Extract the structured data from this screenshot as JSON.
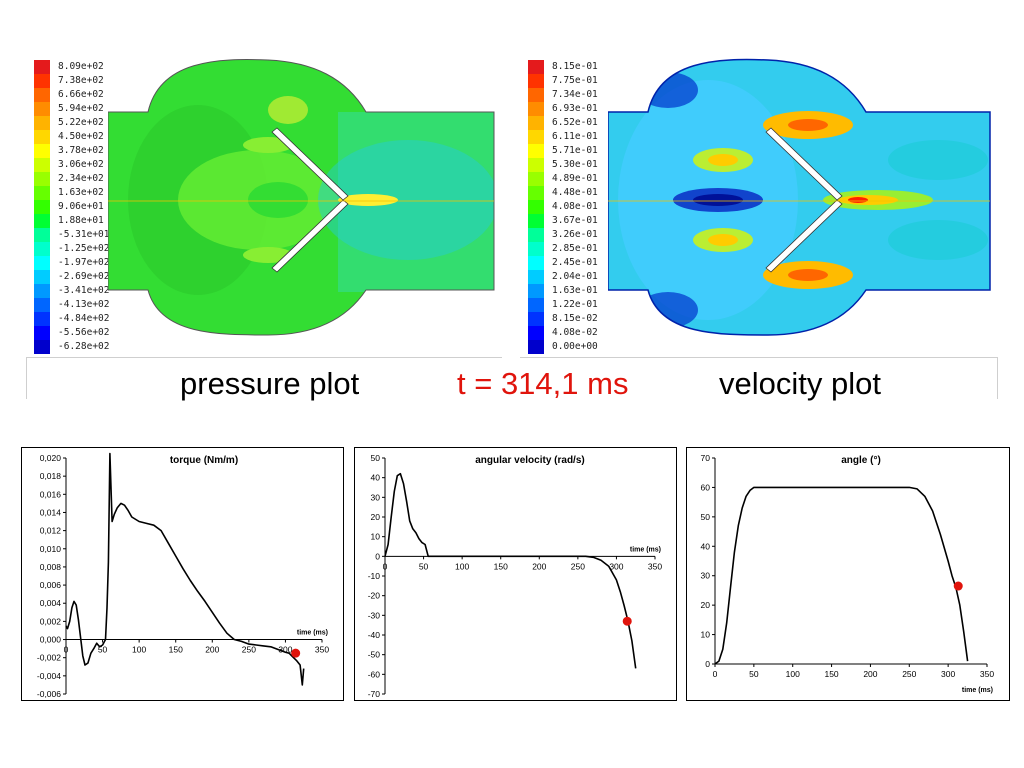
{
  "captions": {
    "pressure": "pressure plot",
    "time": "t = 314,1 ms",
    "velocity": "velocity plot",
    "time_color": "#e0140c"
  },
  "pressure_legend": {
    "labels": [
      "8.09e+02",
      "7.38e+02",
      "6.66e+02",
      "5.94e+02",
      "5.22e+02",
      "4.50e+02",
      "3.78e+02",
      "3.06e+02",
      "2.34e+02",
      "1.63e+02",
      "9.06e+01",
      "1.88e+01",
      "-5.31e+01",
      "-1.25e+02",
      "-1.97e+02",
      "-2.69e+02",
      "-3.41e+02",
      "-4.13e+02",
      "-4.84e+02",
      "-5.56e+02",
      "-6.28e+02"
    ]
  },
  "velocity_legend": {
    "labels": [
      "8.15e-01",
      "7.75e-01",
      "7.34e-01",
      "6.93e-01",
      "6.52e-01",
      "6.11e-01",
      "5.71e-01",
      "5.30e-01",
      "4.89e-01",
      "4.48e-01",
      "4.08e-01",
      "3.67e-01",
      "3.26e-01",
      "2.85e-01",
      "2.45e-01",
      "2.04e-01",
      "1.63e-01",
      "1.22e-01",
      "8.15e-02",
      "4.08e-02",
      "0.00e+00"
    ]
  },
  "colormap": [
    "#e41a1c",
    "#ff3300",
    "#ff6600",
    "#ff8c00",
    "#ffb300",
    "#ffd700",
    "#ffff00",
    "#ccff00",
    "#99ff00",
    "#66ff00",
    "#33ff00",
    "#00ff33",
    "#00ff99",
    "#00ffcc",
    "#00ffff",
    "#00ccff",
    "#0099ff",
    "#0066ff",
    "#0033ff",
    "#0000ff",
    "#0000cc"
  ],
  "chart_data": [
    {
      "type": "line",
      "title": "torque (Nm/m)",
      "xlabel": "time (ms)",
      "ylabel": "",
      "xlim": [
        0,
        350
      ],
      "ylim": [
        -0.006,
        0.02
      ],
      "xticks": [
        "0",
        "50",
        "100",
        "150",
        "200",
        "250",
        "300",
        "350"
      ],
      "yticks": [
        "-0,006",
        "-0,004",
        "-0,002",
        "0,000",
        "0,002",
        "0,004",
        "0,006",
        "0,008",
        "0,010",
        "0,012",
        "0,014",
        "0,016",
        "0,018",
        "0,020"
      ],
      "series": [
        {
          "x": [
            0,
            2,
            5,
            8,
            11,
            14,
            17,
            20,
            23,
            26,
            30,
            34,
            38,
            42,
            46,
            50,
            54,
            56,
            58,
            60,
            63,
            66,
            70,
            75,
            80,
            85,
            90,
            100,
            110,
            120,
            130,
            140,
            150,
            160,
            170,
            180,
            190,
            200,
            210,
            220,
            230,
            240,
            250,
            260,
            270,
            280,
            290,
            300,
            305,
            310,
            315,
            320,
            323,
            325
          ],
          "y": [
            0.0015,
            0.0012,
            0.002,
            0.0035,
            0.0042,
            0.0038,
            0.0022,
            0.0002,
            -0.0018,
            -0.0028,
            -0.0026,
            -0.0015,
            -0.001,
            -0.0004,
            -0.0008,
            -0.0006,
            0.0,
            0.0035,
            0.0085,
            0.0205,
            0.013,
            0.0138,
            0.0145,
            0.015,
            0.0148,
            0.0142,
            0.0135,
            0.013,
            0.0128,
            0.0126,
            0.012,
            0.0106,
            0.0092,
            0.0078,
            0.0065,
            0.0053,
            0.0042,
            0.003,
            0.0018,
            0.0007,
            0.0,
            -0.0002,
            -0.0005,
            -0.0006,
            -0.0007,
            -0.0008,
            -0.0011,
            -0.0014,
            -0.0015,
            -0.0019,
            -0.0023,
            -0.0028,
            -0.005,
            -0.0032
          ]
        }
      ],
      "marker": {
        "x": 314,
        "y": -0.0015,
        "color": "#e0140c"
      },
      "legend": "none",
      "grid": false
    },
    {
      "type": "line",
      "title": "angular velocity (rad/s)",
      "xlabel": "time (ms)",
      "ylabel": "",
      "xlim": [
        0,
        350
      ],
      "ylim": [
        -70,
        50
      ],
      "xticks": [
        "0",
        "50",
        "100",
        "150",
        "200",
        "250",
        "300",
        "350"
      ],
      "yticks": [
        "-70",
        "-60",
        "-50",
        "-40",
        "-30",
        "-20",
        "-10",
        "0",
        "10",
        "20",
        "30",
        "40",
        "50"
      ],
      "series": [
        {
          "x": [
            0,
            4,
            8,
            12,
            16,
            20,
            24,
            28,
            32,
            36,
            40,
            44,
            48,
            52,
            56,
            60,
            100,
            150,
            200,
            250,
            260,
            270,
            280,
            290,
            300,
            305,
            310,
            315,
            320,
            325
          ],
          "y": [
            0,
            6,
            20,
            33,
            41,
            42,
            37,
            28,
            18,
            14,
            12,
            9,
            7,
            6,
            0,
            0,
            0,
            0,
            0,
            0,
            0,
            -0.5,
            -2,
            -5,
            -12,
            -18,
            -25,
            -33,
            -43,
            -57
          ]
        }
      ],
      "marker": {
        "x": 314,
        "y": -33,
        "color": "#e0140c"
      },
      "legend": "none",
      "grid": false
    },
    {
      "type": "line",
      "title": "angle (°)",
      "xlabel": "time (ms)",
      "ylabel": "",
      "xlim": [
        0,
        350
      ],
      "ylim": [
        0,
        70
      ],
      "xticks": [
        "0",
        "50",
        "100",
        "150",
        "200",
        "250",
        "300",
        "350"
      ],
      "yticks": [
        "0",
        "10",
        "20",
        "30",
        "40",
        "50",
        "60",
        "70"
      ],
      "series": [
        {
          "x": [
            0,
            5,
            10,
            15,
            20,
            25,
            30,
            35,
            40,
            45,
            50,
            55,
            100,
            150,
            200,
            250,
            260,
            270,
            280,
            290,
            300,
            305,
            310,
            315,
            320,
            325
          ],
          "y": [
            0,
            1,
            5,
            14,
            26,
            38,
            47,
            53,
            57,
            59,
            60,
            60,
            60,
            60,
            60,
            60,
            59.5,
            57,
            52,
            44,
            35,
            30,
            26,
            20,
            11,
            1
          ]
        }
      ],
      "marker": {
        "x": 313,
        "y": 26.5,
        "color": "#e0140c"
      },
      "legend": "none",
      "grid": false
    }
  ]
}
